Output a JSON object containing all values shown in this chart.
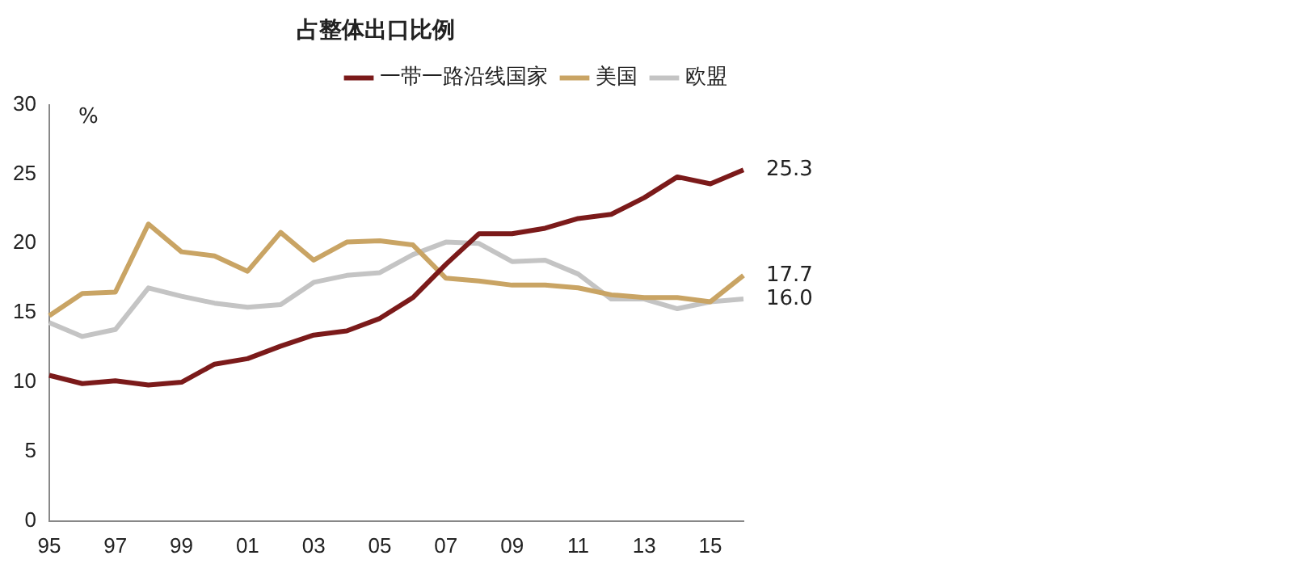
{
  "chart_data": {
    "type": "line",
    "title": "占整体出口比例",
    "ylabel": "%",
    "categories": [
      "95",
      null,
      "97",
      null,
      "99",
      null,
      "01",
      null,
      "03",
      null,
      "05",
      null,
      "07",
      null,
      "09",
      null,
      "11",
      null,
      "13",
      null,
      "15",
      null
    ],
    "series": [
      {
        "name": "一带一路沿线国家",
        "color": "#7b1a1a",
        "values": [
          10.5,
          9.9,
          10.1,
          9.8,
          10.0,
          11.3,
          11.7,
          12.6,
          13.4,
          13.7,
          14.6,
          16.1,
          18.5,
          20.7,
          20.7,
          21.1,
          21.8,
          22.1,
          23.3,
          24.8,
          24.3,
          25.3
        ],
        "value_labels": [
          null,
          null,
          null,
          null,
          null,
          null,
          null,
          null,
          null,
          null,
          null,
          null,
          null,
          null,
          null,
          null,
          null,
          null,
          null,
          null,
          null,
          "25.3"
        ]
      },
      {
        "name": "美国",
        "color": "#c9a464",
        "values": [
          14.8,
          16.4,
          16.5,
          21.4,
          19.4,
          19.1,
          18.0,
          20.8,
          18.8,
          20.1,
          20.2,
          19.9,
          17.5,
          17.3,
          17.0,
          17.0,
          16.8,
          16.3,
          16.1,
          16.1,
          15.8,
          17.7
        ],
        "value_labels": [
          null,
          null,
          null,
          null,
          null,
          null,
          null,
          null,
          null,
          null,
          null,
          null,
          null,
          null,
          null,
          null,
          null,
          null,
          null,
          null,
          null,
          "17.7"
        ]
      },
      {
        "name": "欧盟",
        "color": "#c4c4c4",
        "values": [
          14.3,
          13.3,
          13.8,
          16.8,
          16.2,
          15.7,
          15.4,
          15.6,
          17.2,
          17.7,
          17.9,
          19.2,
          20.1,
          20.0,
          18.7,
          18.8,
          17.8,
          16.0,
          16.0,
          15.3,
          15.8,
          16.0
        ],
        "value_labels": [
          null,
          null,
          null,
          null,
          null,
          null,
          null,
          null,
          null,
          null,
          null,
          null,
          null,
          null,
          null,
          null,
          null,
          null,
          null,
          null,
          null,
          "16.0"
        ]
      }
    ],
    "ylim": [
      0,
      30
    ],
    "yticks": [
      0,
      5,
      10,
      15,
      20,
      25,
      30
    ],
    "grid": false,
    "legend": "top",
    "marker": "none",
    "line_style": "solid"
  }
}
